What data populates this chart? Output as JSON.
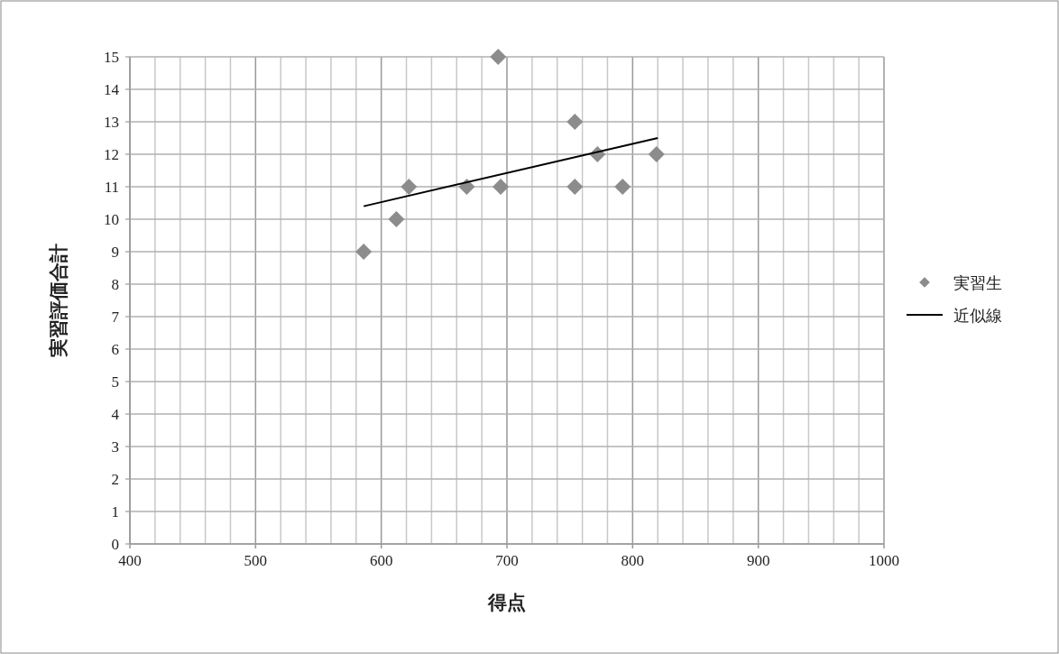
{
  "chart_data": {
    "type": "scatter",
    "xlabel": "得点",
    "ylabel": "実習評価合計",
    "xlim": [
      400,
      1000
    ],
    "xticks": [
      400,
      500,
      600,
      700,
      800,
      900,
      1000
    ],
    "ylim": [
      0,
      15
    ],
    "yticks": [
      0,
      1,
      2,
      3,
      4,
      5,
      6,
      7,
      8,
      9,
      10,
      11,
      12,
      13,
      14,
      15
    ],
    "grid": true,
    "legend": "right",
    "series": [
      {
        "name": "実習生",
        "marker": "diamond",
        "color": "#8c8c8c",
        "x": [
          586,
          612,
          622,
          668,
          693,
          695,
          754,
          754,
          772,
          792,
          819
        ],
        "values": [
          9,
          10,
          11,
          11,
          15,
          11,
          13,
          11,
          12,
          11,
          12
        ]
      },
      {
        "name": "近似線",
        "type": "line",
        "marker": "none",
        "color": "#000000",
        "x": [
          586,
          820
        ],
        "values": [
          10.4,
          12.5
        ]
      }
    ]
  }
}
